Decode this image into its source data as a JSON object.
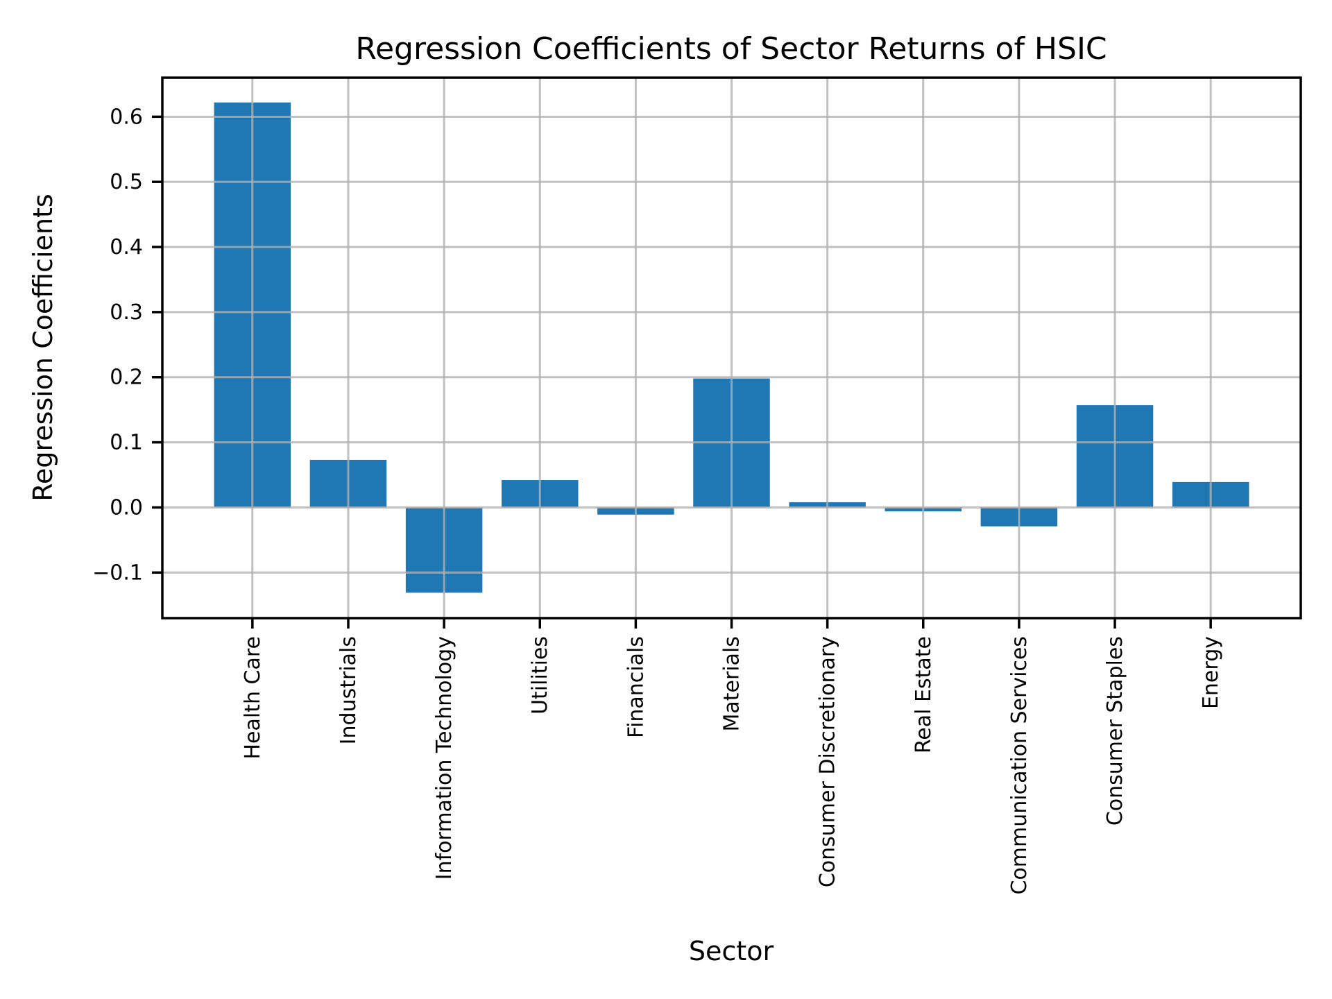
{
  "chart_data": {
    "type": "bar",
    "title": "Regression Coefficients of Sector Returns of HSIC",
    "xlabel": "Sector",
    "ylabel": "Regression Coefficients",
    "categories": [
      "Health Care",
      "Industrials",
      "Information Technology",
      "Utilities",
      "Financials",
      "Materials",
      "Consumer Discretionary",
      "Real Estate",
      "Communication Services",
      "Consumer Staples",
      "Energy"
    ],
    "values": [
      0.622,
      0.073,
      -0.131,
      0.042,
      -0.011,
      0.198,
      0.008,
      -0.006,
      -0.029,
      0.157,
      0.039
    ],
    "yticks": {
      "values": [
        0.6,
        0.5,
        0.4,
        0.3,
        0.2,
        0.1,
        0.0,
        -0.1
      ],
      "labels": [
        "0.6",
        "0.5",
        "0.4",
        "0.3",
        "0.2",
        "0.1",
        "0.0",
        "−0.1"
      ]
    },
    "ylim": [
      -0.17,
      0.66
    ],
    "grid": true,
    "legend": false,
    "bar_color": "#1f77b4",
    "grid_color": "#b0b0b0",
    "axis_color": "#000000",
    "text_color": "#000000",
    "background_color": "#ffffff"
  }
}
